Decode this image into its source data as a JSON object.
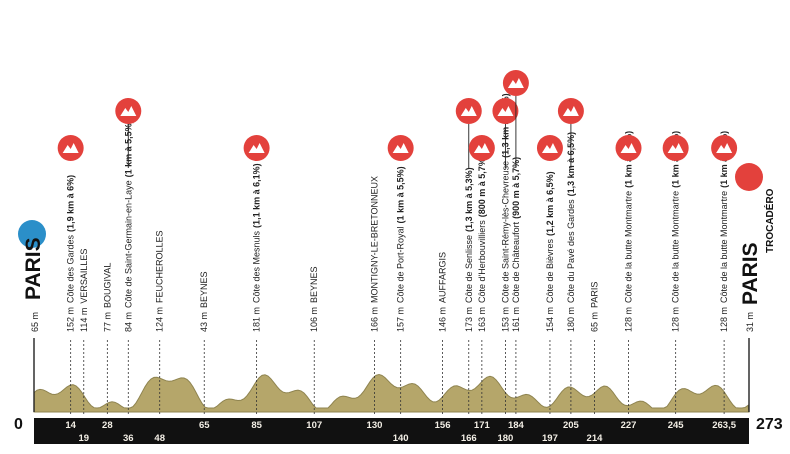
{
  "colors": {
    "profile_fill": "#b5a66a",
    "profile_stroke": "#8f8450",
    "axis_bar": "#111111",
    "climb_marker": "#e3413c",
    "start_marker": "#2b8fc9",
    "finish_marker": "#e3413c",
    "icon": "mountain-icon"
  },
  "start": {
    "city": "PARIS",
    "km": "0",
    "altitude": "65 m"
  },
  "finish": {
    "city": "PARIS",
    "sub": "TROCADÉRO",
    "km": "273",
    "altitude": "31 m"
  },
  "points": [
    {
      "km": 14,
      "km_label": "14",
      "row": "top",
      "alt": "152 m",
      "name": "Côte des Gardes",
      "climb": "(1,9 km à 6%)",
      "marker": 1
    },
    {
      "km": 19,
      "km_label": "19",
      "row": "bottom",
      "alt": "114 m",
      "name": "VERSAILLES",
      "climb": ""
    },
    {
      "km": 28,
      "km_label": "28",
      "row": "top",
      "alt": "77 m",
      "name": "BOUGIVAL",
      "climb": ""
    },
    {
      "km": 36,
      "km_label": "36",
      "row": "bottom",
      "alt": "84 m",
      "name": "Côte de Saint-Germain-en-Laye",
      "climb": "(1 km à 5,5%)",
      "marker": 2
    },
    {
      "km": 48,
      "km_label": "48",
      "row": "bottom",
      "alt": "124 m",
      "name": "FEUCHEROLLES",
      "climb": ""
    },
    {
      "km": 65,
      "km_label": "65",
      "row": "top",
      "alt": "43 m",
      "name": "BEYNES",
      "climb": ""
    },
    {
      "km": 85,
      "km_label": "85",
      "row": "top",
      "alt": "181 m",
      "name": "Côte des Mesnuls",
      "climb": "(1,1 km à 6,1%)",
      "marker": 1
    },
    {
      "km": 107,
      "km_label": "107",
      "row": "top",
      "alt": "106 m",
      "name": "BEYNES",
      "climb": ""
    },
    {
      "km": 130,
      "km_label": "130",
      "row": "top",
      "alt": "166 m",
      "name": "MONTIGNY-LE-BRETONNEUX",
      "climb": ""
    },
    {
      "km": 140,
      "km_label": "140",
      "row": "bottom",
      "alt": "157 m",
      "name": "Côte de Port-Royal",
      "climb": "(1 km à 5,5%)",
      "marker": 1
    },
    {
      "km": 156,
      "km_label": "156",
      "row": "top",
      "alt": "146 m",
      "name": "AUFFARGIS",
      "climb": ""
    },
    {
      "km": 166,
      "km_label": "166",
      "row": "bottom",
      "alt": "173 m",
      "name": "Côte de Senlisse",
      "climb": "(1,3 km à 5,3%)",
      "marker": 2
    },
    {
      "km": 171,
      "km_label": "171",
      "row": "top",
      "alt": "163 m",
      "name": "Côte d'Herbouvilliers",
      "climb": "(800 m à 5,7%)",
      "marker": 1
    },
    {
      "km": 180,
      "km_label": "180",
      "row": "bottom",
      "alt": "153 m",
      "name": "Côte de Saint-Rémy-lès-Chevreuse",
      "climb": "(1,3 km à 6,3%)",
      "marker": 2
    },
    {
      "km": 184,
      "km_label": "184",
      "row": "top",
      "alt": "161 m",
      "name": "Côte de Châteaufort",
      "climb": "(900 m à 5,7%)",
      "marker": 3
    },
    {
      "km": 197,
      "km_label": "197",
      "row": "bottom",
      "alt": "154 m",
      "name": "Côte de Bièvres",
      "climb": "(1,2 km à 6,5%)",
      "marker": 1
    },
    {
      "km": 205,
      "km_label": "205",
      "row": "top",
      "alt": "180 m",
      "name": "Côte du Pavé des Gardes",
      "climb": "(1,3 km à 6,5%)",
      "marker": 2
    },
    {
      "km": 214,
      "km_label": "214",
      "row": "bottom",
      "alt": "65 m",
      "name": "PARIS",
      "climb": ""
    },
    {
      "km": 227,
      "km_label": "227",
      "row": "top",
      "alt": "128 m",
      "name": "Côte de la butte Montmartre",
      "climb": "(1 km à 6,5%)",
      "marker": 1
    },
    {
      "km": 245,
      "km_label": "245",
      "row": "top",
      "alt": "128 m",
      "name": "Côte de la butte Montmartre",
      "climb": "(1 km à 6,5%)",
      "marker": 1
    },
    {
      "km": 263.5,
      "km_label": "263,5",
      "row": "top",
      "alt": "128 m",
      "name": "Côte de la butte Montmartre",
      "climb": "(1 km à 6,5%)",
      "marker": 1
    }
  ]
}
